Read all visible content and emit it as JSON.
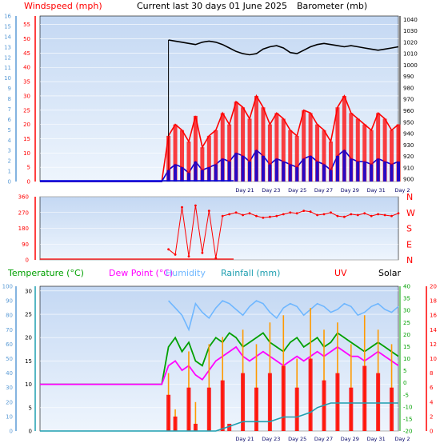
{
  "header": {
    "title": "Current last 30 days 01 June 2025",
    "left_label": "Windspeed (mph)",
    "right_label": "Barometer (mb)"
  },
  "colors": {
    "wind_speed": "#ff0000",
    "wind_avg": "#0000dd",
    "barometer": "#000000",
    "temperature": "#00a000",
    "dew_point": "#ff00ff",
    "humidity": "#6fb7ff",
    "rainfall": "#1f9fb0",
    "uv": "#ff0000",
    "solar": "#ff9a00",
    "direction": "#ff0000",
    "plot_bg_top": "#c7daf5",
    "plot_bg_bottom": "#eaf2fc"
  },
  "chart_data": [
    {
      "type": "line",
      "name": "wind-barometer",
      "x_tick_labels": [
        "Day 21",
        "Day 23",
        "Day 25",
        "Day 27",
        "Day 29",
        "Day 31",
        "Day 2"
      ],
      "yaxis_left_outer": {
        "label": "",
        "ticks": [
          "0",
          "1",
          "2",
          "3",
          "4",
          "5",
          "6",
          "7",
          "8",
          "9",
          "10",
          "11",
          "12",
          "13",
          "14",
          "15",
          "16"
        ]
      },
      "yaxis_left_inner": {
        "label": "Windspeed (mph)",
        "ticks": [
          "0",
          "5",
          "10",
          "15",
          "20",
          "25",
          "30",
          "35",
          "40",
          "45",
          "50",
          "55"
        ],
        "ylim": [
          0,
          58
        ]
      },
      "yaxis_right": {
        "label": "Barometer (mb)",
        "ticks": [
          "900",
          "910",
          "920",
          "930",
          "940",
          "950",
          "960",
          "970",
          "980",
          "990",
          "1000",
          "1010",
          "1020",
          "1030",
          "1040"
        ],
        "ylim": [
          898,
          1043
        ]
      },
      "series": [
        {
          "name": "Windspeed",
          "values": [
            0,
            0,
            0,
            0,
            0,
            0,
            0,
            0,
            0,
            0,
            0,
            0,
            0,
            0,
            0,
            0,
            0,
            0,
            0,
            16,
            20,
            18,
            14,
            23,
            12,
            16,
            18,
            24,
            20,
            28,
            26,
            22,
            30,
            26,
            20,
            24,
            22,
            18,
            16,
            25,
            24,
            20,
            18,
            14,
            26,
            30,
            24,
            22,
            20,
            18,
            24,
            22,
            18,
            20
          ]
        },
        {
          "name": "Wind average",
          "values": [
            0,
            0,
            0,
            0,
            0,
            0,
            0,
            0,
            0,
            0,
            0,
            0,
            0,
            0,
            0,
            0,
            0,
            0,
            0,
            4,
            6,
            5,
            3,
            7,
            4,
            5,
            6,
            8,
            7,
            10,
            9,
            7,
            11,
            9,
            6,
            8,
            7,
            6,
            5,
            8,
            9,
            7,
            6,
            4,
            9,
            11,
            8,
            7,
            7,
            6,
            8,
            7,
            6,
            7
          ]
        },
        {
          "name": "Barometer",
          "values": [
            null,
            null,
            null,
            null,
            null,
            null,
            null,
            null,
            null,
            null,
            null,
            null,
            null,
            null,
            null,
            null,
            null,
            null,
            null,
            1022,
            1021,
            1020,
            1019,
            1018,
            1020,
            1021,
            1020,
            1018,
            1015,
            1012,
            1010,
            1009,
            1010,
            1014,
            1016,
            1017,
            1015,
            1011,
            1010,
            1013,
            1016,
            1018,
            1019,
            1018,
            1017,
            1016,
            1017,
            1016,
            1015,
            1014,
            1013,
            1014,
            1015,
            1016
          ]
        }
      ]
    },
    {
      "type": "line",
      "name": "wind-direction",
      "x_tick_labels": [],
      "yaxis_left": {
        "label": "",
        "ticks": [
          "0",
          "90",
          "180",
          "270",
          "360"
        ],
        "ylim": [
          0,
          360
        ]
      },
      "yaxis_right": {
        "label": "",
        "ticks": [
          "N",
          "E",
          "S",
          "W",
          "N"
        ]
      },
      "series": [
        {
          "name": "Wind direction",
          "values": [
            null,
            null,
            null,
            null,
            null,
            null,
            null,
            null,
            null,
            null,
            null,
            null,
            null,
            null,
            null,
            null,
            null,
            null,
            null,
            60,
            30,
            300,
            20,
            310,
            40,
            280,
            10,
            250,
            260,
            270,
            255,
            265,
            250,
            240,
            245,
            250,
            260,
            270,
            265,
            280,
            275,
            255,
            260,
            270,
            250,
            245,
            260,
            255,
            265,
            250,
            260,
            255,
            250,
            265
          ]
        }
      ]
    },
    {
      "type": "line",
      "name": "temperature-rain-solar",
      "x_tick_labels": [
        "Day 21",
        "Day 23",
        "Day 25",
        "Day 27",
        "Day 29",
        "Day 31",
        "Day 2"
      ],
      "legend": [
        "Temperature (°C)",
        "Dew Point (°C)",
        "Humidity",
        "Rainfall (mm)",
        "UV",
        "Solar"
      ],
      "yaxis_left_outer": {
        "label": "",
        "ticks": [
          "0",
          "10",
          "20",
          "30",
          "40",
          "50",
          "60",
          "70",
          "80",
          "90",
          "100"
        ]
      },
      "yaxis_left_inner": {
        "label": "",
        "ticks": [
          "0",
          "5",
          "10",
          "15",
          "20",
          "25",
          "30"
        ],
        "ylim": [
          0,
          31
        ]
      },
      "yaxis_right_inner": {
        "label": "",
        "ticks": [
          "-20",
          "-15",
          "-10",
          "-5",
          "0",
          "5",
          "10",
          "15",
          "20",
          "25",
          "30",
          "35",
          "40"
        ]
      },
      "yaxis_right_outer": {
        "label": "",
        "ticks": [
          "0",
          "2",
          "4",
          "6",
          "8",
          "10",
          "12",
          "14",
          "16",
          "18",
          "20"
        ]
      },
      "series": [
        {
          "name": "Temperature (°C)",
          "values": [
            10,
            10,
            10,
            10,
            10,
            10,
            10,
            10,
            10,
            10,
            10,
            10,
            10,
            10,
            10,
            10,
            10,
            10,
            10,
            18,
            20,
            17,
            19,
            15,
            14,
            18,
            20,
            19,
            21,
            20,
            18,
            19,
            20,
            21,
            19,
            18,
            17,
            19,
            20,
            18,
            19,
            20,
            18,
            19,
            21,
            20,
            19,
            18,
            17,
            18,
            19,
            18,
            17,
            16
          ]
        },
        {
          "name": "Dew Point (°C)",
          "values": [
            10,
            10,
            10,
            10,
            10,
            10,
            10,
            10,
            10,
            10,
            10,
            10,
            10,
            10,
            10,
            10,
            10,
            10,
            10,
            14,
            15,
            13,
            14,
            12,
            11,
            13,
            15,
            16,
            17,
            18,
            16,
            15,
            16,
            17,
            16,
            15,
            14,
            15,
            16,
            15,
            16,
            17,
            16,
            17,
            18,
            17,
            16,
            16,
            15,
            16,
            17,
            16,
            15,
            14
          ]
        },
        {
          "name": "Humidity",
          "values": [
            null,
            null,
            null,
            null,
            null,
            null,
            null,
            null,
            null,
            null,
            null,
            null,
            null,
            null,
            null,
            null,
            null,
            null,
            null,
            90,
            85,
            80,
            70,
            88,
            82,
            78,
            85,
            90,
            88,
            84,
            80,
            86,
            90,
            88,
            82,
            78,
            85,
            88,
            86,
            80,
            84,
            88,
            86,
            82,
            84,
            88,
            86,
            80,
            82,
            86,
            88,
            84,
            82,
            86
          ]
        },
        {
          "name": "Rainfall (mm)",
          "values": [
            0,
            0,
            0,
            0,
            0,
            0,
            0,
            0,
            0,
            0,
            0,
            0,
            0,
            0,
            0,
            0,
            0,
            0,
            0,
            0,
            0,
            0,
            0,
            0,
            0,
            0,
            0,
            0.5,
            1,
            1.5,
            2,
            2,
            2,
            2,
            2,
            2.5,
            3,
            3,
            3,
            3.5,
            4,
            5,
            5.5,
            6,
            6,
            6,
            6,
            6,
            6,
            6,
            6,
            6,
            6,
            6
          ]
        },
        {
          "name": "UV",
          "values": [
            0,
            0,
            0,
            0,
            0,
            0,
            0,
            0,
            0,
            0,
            0,
            0,
            0,
            0,
            0,
            0,
            0,
            0,
            0,
            5,
            2,
            0,
            6,
            1,
            0,
            6,
            0,
            7,
            1,
            0,
            8,
            0,
            6,
            0,
            8,
            0,
            9,
            0,
            6,
            0,
            10,
            0,
            7,
            0,
            8,
            0,
            6,
            0,
            9,
            0,
            8,
            0,
            6,
            0
          ]
        },
        {
          "name": "Solar",
          "values": [
            0,
            0,
            0,
            0,
            0,
            0,
            0,
            0,
            0,
            0,
            0,
            0,
            0,
            0,
            0,
            0,
            0,
            0,
            0,
            400,
            150,
            0,
            550,
            200,
            0,
            600,
            0,
            650,
            0,
            0,
            700,
            0,
            600,
            0,
            750,
            0,
            800,
            0,
            500,
            0,
            850,
            0,
            700,
            0,
            750,
            0,
            600,
            0,
            800,
            0,
            700,
            0,
            600,
            0
          ]
        }
      ]
    }
  ]
}
